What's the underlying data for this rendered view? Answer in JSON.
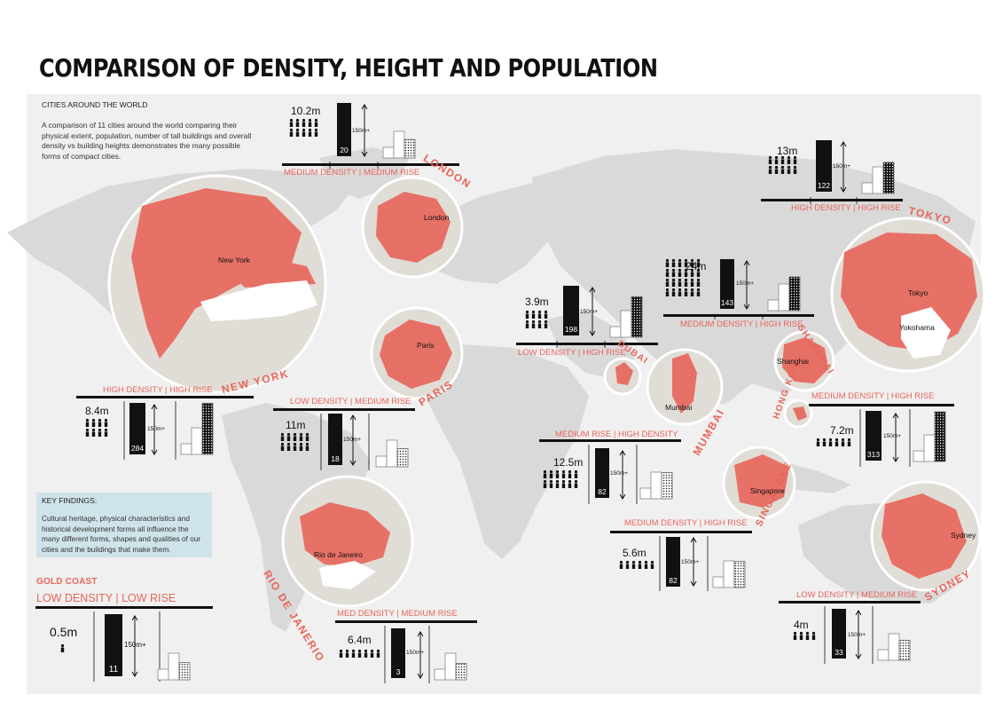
{
  "title": "COMPARISON OF DENSITY, HEIGHT AND POPULATION",
  "intro": {
    "heading": "CITIES AROUND THE WORLD",
    "text": "A comparison of 11 cities around the world comparing their physical extent, population, number of tall buildings and overall density vs building heights demonstrates the many possible forms of compact cities."
  },
  "key_findings": {
    "heading": "KEY FINDINGS:",
    "text": "Cultural heritage, physical characteristics and historical development forms all influence the many different forms, shapes and qualities of our cities and the buildings that make them."
  },
  "height_label": "150m+",
  "gold_coast": {
    "name": "GOLD COAST",
    "classification": "LOW DENSITY  |  LOW RISE",
    "population": "0.5m",
    "tall_buildings": "11"
  },
  "cities": [
    {
      "id": "new-york",
      "name": "NEW YORK",
      "place": "New York",
      "classification": "HIGH DENSITY  |  HIGH RISE",
      "population": "8.4m",
      "tall_buildings": "284"
    },
    {
      "id": "london",
      "name": "LONDON",
      "place": "London",
      "classification": "MEDIUM DENSITY  |  MEDIUM RISE",
      "population": "10.2m",
      "tall_buildings": "20"
    },
    {
      "id": "paris",
      "name": "PARIS",
      "place": "Paris",
      "classification": "LOW DENSITY  |  MEDIUM RISE",
      "population": "11m",
      "tall_buildings": "18"
    },
    {
      "id": "rio",
      "name": "RIO DE JANERIO",
      "place": "Rio de Janeiro",
      "classification": "MED DENSITY  |  MEDIUM RISE",
      "population": "6.4m",
      "tall_buildings": "3"
    },
    {
      "id": "dubai",
      "name": "DUBAI",
      "place": "",
      "classification": "LOW DENSITY  |  HIGH RISE",
      "population": "3.9m",
      "tall_buildings": "198"
    },
    {
      "id": "mumbai",
      "name": "MUMBAI",
      "place": "Mumbai",
      "classification": "MEDIUM RISE  |  HIGH DENSITY",
      "population": "12.5m",
      "tall_buildings": "82"
    },
    {
      "id": "shanghai",
      "name": "SHANGHAI",
      "place": "Shanghai",
      "classification": "MEDIUM DENSITY  |  HIGH RISE",
      "population": "24m",
      "tall_buildings": "143"
    },
    {
      "id": "tokyo",
      "name": "TOKYO",
      "place": "Tokyo",
      "place2": "Yokohama",
      "classification": "HIGH DENSITY  |  HIGH RISE",
      "population": "13m",
      "tall_buildings": "122"
    },
    {
      "id": "hong-kong",
      "name": "HONG KONG",
      "place": "",
      "classification": "MEDIUM DENSITY  |  HIGH RISE",
      "population": "7.2m",
      "tall_buildings": "313"
    },
    {
      "id": "singapore",
      "name": "SINGAPORE",
      "place": "Singapore",
      "classification": "MEDIUM DENSITY  |  HIGH RISE",
      "population": "5.6m",
      "tall_buildings": "82"
    },
    {
      "id": "sydney",
      "name": "SYDNEY",
      "place": "Sydney",
      "classification": "LOW DENSITY  |  MEDIUM RISE",
      "population": "4m",
      "tall_buildings": "33"
    }
  ],
  "colors": {
    "accent": "#e8655a",
    "land": "#d9d9d9",
    "panel": "#f0f0f0",
    "key_box": "#cfe3ea"
  }
}
